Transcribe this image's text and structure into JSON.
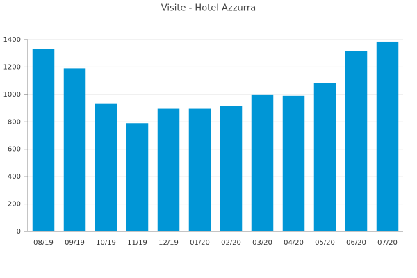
{
  "chart_data": {
    "type": "bar",
    "title": "Visite - Hotel Azzurra",
    "categories": [
      "08/19",
      "09/19",
      "10/19",
      "11/19",
      "12/19",
      "01/20",
      "02/20",
      "03/20",
      "04/20",
      "05/20",
      "06/20",
      "07/20"
    ],
    "values": [
      1330,
      1190,
      935,
      790,
      895,
      895,
      915,
      1000,
      990,
      1085,
      1315,
      1385
    ],
    "color": "#0096d6",
    "ylim": [
      0,
      1400
    ],
    "yticks": [
      0,
      200,
      400,
      600,
      800,
      1000,
      1200,
      1400
    ],
    "grid": true
  }
}
